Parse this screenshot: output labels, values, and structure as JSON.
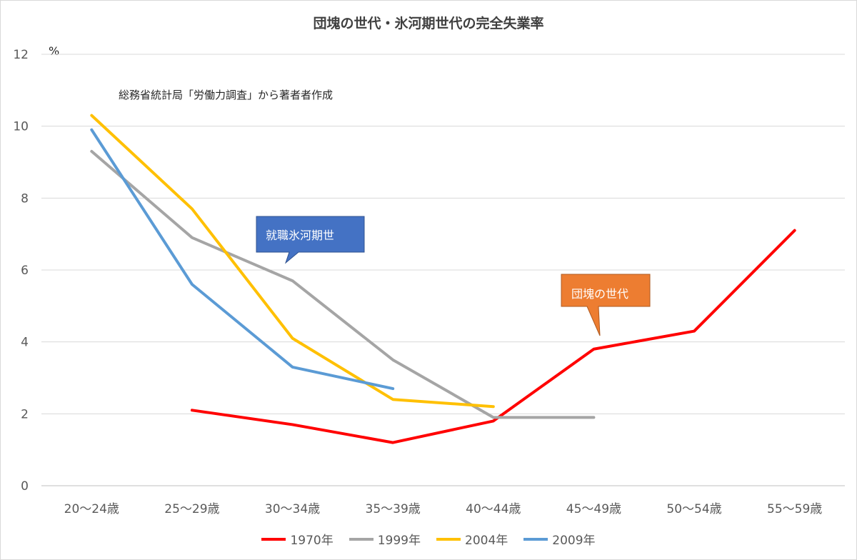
{
  "chart_data": {
    "type": "line",
    "title": "団塊の世代・氷河期世代の完全失業率",
    "unit_label": "%",
    "note": "総務省統計局「労働力調査」から著者者作成",
    "categories": [
      "20～24歳",
      "25～29歳",
      "30～34歳",
      "35～39歳",
      "40～44歳",
      "45～49歳",
      "50～54歳",
      "55～59歳"
    ],
    "ylim": [
      0,
      12
    ],
    "yticks": [
      "0",
      "2",
      "4",
      "6",
      "8",
      "10",
      "12"
    ],
    "grid": true,
    "legend_position": "bottom",
    "series": [
      {
        "name": "1970年",
        "color": "#ff0000",
        "values": [
          null,
          2.1,
          1.7,
          1.2,
          1.8,
          3.8,
          4.3,
          7.1
        ]
      },
      {
        "name": "1999年",
        "color": "#a5a5a5",
        "values": [
          9.3,
          6.9,
          5.7,
          3.5,
          1.9,
          1.9,
          null,
          null
        ]
      },
      {
        "name": "2004年",
        "color": "#ffc000",
        "values": [
          10.3,
          7.7,
          4.1,
          2.4,
          2.2,
          null,
          null,
          null
        ]
      },
      {
        "name": "2009年",
        "color": "#5b9bd5",
        "values": [
          9.9,
          5.6,
          3.3,
          2.7,
          null,
          null,
          null,
          null
        ]
      }
    ],
    "annotations": [
      {
        "text": "就職氷河期世",
        "color": "#4472c4"
      },
      {
        "text": "団塊の世代",
        "color": "#ed7d31"
      }
    ]
  }
}
